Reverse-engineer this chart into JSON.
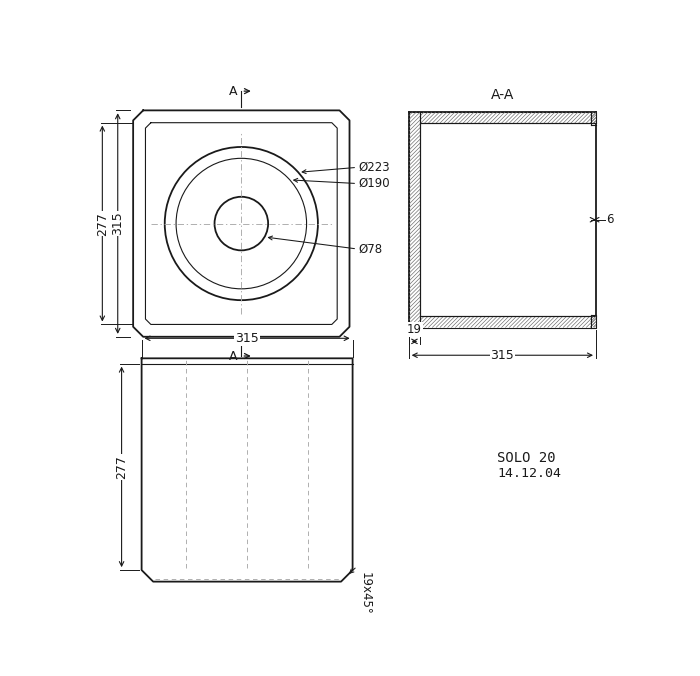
{
  "bg_color": "#ffffff",
  "line_color": "#1a1a1a",
  "hatch_color": "#666666",
  "cl_color": "#aaaaaa",
  "title_AA": "A-A",
  "label_solo": "SOLO 20",
  "label_date": "14.12.04",
  "dim_19x45": "19x45°"
}
